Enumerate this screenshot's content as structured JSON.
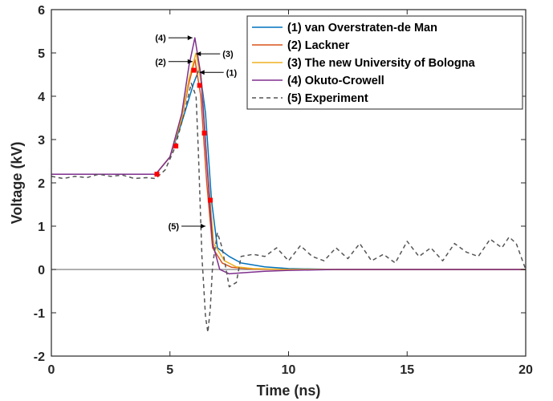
{
  "chart_data": {
    "type": "line",
    "title": "",
    "xlabel": "Time (ns)",
    "ylabel": "Voltage (kV)",
    "xlim": [
      0,
      20
    ],
    "ylim": [
      -2,
      6
    ],
    "xticks": [
      "0",
      "5",
      "10",
      "15",
      "20"
    ],
    "yticks": [
      "-2",
      "-1",
      "0",
      "1",
      "2",
      "3",
      "4",
      "5",
      "6"
    ],
    "grid": false,
    "legend_position": "top-right",
    "series": [
      {
        "name": "(1) van Overstraten-de Man",
        "color": "#0072BD",
        "style": "solid",
        "x": [
          0,
          4.4,
          5.0,
          5.5,
          6.0,
          6.25,
          6.5,
          6.75,
          7.0,
          7.5,
          8.0,
          9.0,
          10.0,
          12.0,
          20.0
        ],
        "y": [
          2.2,
          2.2,
          2.6,
          3.4,
          4.3,
          4.65,
          3.6,
          1.6,
          0.5,
          0.3,
          0.15,
          0.06,
          0.02,
          0.0,
          0.0
        ]
      },
      {
        "name": "(2) Lackner",
        "color": "#D95319",
        "style": "solid",
        "x": [
          0,
          4.4,
          5.0,
          5.5,
          5.8,
          6.05,
          6.3,
          6.55,
          6.8,
          7.2,
          7.6,
          8.5,
          10.0,
          20.0
        ],
        "y": [
          2.2,
          2.2,
          2.6,
          3.5,
          4.3,
          4.85,
          4.0,
          2.0,
          0.5,
          0.15,
          0.05,
          0.01,
          0.0,
          0.0
        ]
      },
      {
        "name": "(3) The new University of Bologna",
        "color": "#EDB120",
        "style": "solid",
        "x": [
          0,
          4.4,
          5.0,
          5.5,
          5.8,
          6.1,
          6.35,
          6.6,
          6.85,
          7.3,
          7.8,
          8.5,
          10.0,
          20.0
        ],
        "y": [
          2.2,
          2.2,
          2.6,
          3.5,
          4.4,
          5.0,
          4.2,
          2.2,
          0.6,
          0.2,
          0.06,
          0.02,
          0.0,
          0.0
        ]
      },
      {
        "name": "(4) Okuto-Crowell",
        "color": "#7E2F8E",
        "style": "solid",
        "x": [
          0,
          4.4,
          5.0,
          5.5,
          5.8,
          6.05,
          6.3,
          6.55,
          6.8,
          7.1,
          7.5,
          8.0,
          9.0,
          10.0,
          12.0,
          20.0
        ],
        "y": [
          2.2,
          2.2,
          2.6,
          3.6,
          4.7,
          5.35,
          4.5,
          2.5,
          0.6,
          0.0,
          -0.1,
          -0.08,
          -0.04,
          -0.02,
          0.0,
          0.0
        ]
      },
      {
        "name": "(5) Experiment",
        "color": "#555555",
        "style": "dashed",
        "x": [
          0,
          0.5,
          1.0,
          1.5,
          2.0,
          2.5,
          3.0,
          3.5,
          4.0,
          4.4,
          4.8,
          5.2,
          5.6,
          5.9,
          6.1,
          6.2,
          6.35,
          6.5,
          6.6,
          6.7,
          6.8,
          7.0,
          7.2,
          7.5,
          7.8,
          8.0,
          8.5,
          9.0,
          9.5,
          10.0,
          10.5,
          11.0,
          11.5,
          12.0,
          12.5,
          13.0,
          13.5,
          14.0,
          14.5,
          15.0,
          15.5,
          16.0,
          16.5,
          17.0,
          17.5,
          18.0,
          18.5,
          19.0,
          19.3,
          19.6,
          20.0
        ],
        "y": [
          2.15,
          2.1,
          2.15,
          2.12,
          2.2,
          2.15,
          2.18,
          2.1,
          2.12,
          2.1,
          2.3,
          2.8,
          3.6,
          4.3,
          4.0,
          2.7,
          0.3,
          -1.1,
          -1.45,
          -0.9,
          0.1,
          0.85,
          0.5,
          -0.4,
          -0.3,
          0.3,
          0.35,
          0.3,
          0.5,
          0.2,
          0.55,
          0.3,
          0.2,
          0.5,
          0.25,
          0.6,
          0.2,
          0.35,
          0.15,
          0.65,
          0.3,
          0.5,
          0.2,
          0.6,
          0.4,
          0.3,
          0.7,
          0.5,
          0.75,
          0.6,
          0.0
        ]
      }
    ],
    "markers": {
      "name": "",
      "color": "#FF0000",
      "shape": "square",
      "x": [
        4.45,
        5.25,
        6.0,
        6.25,
        6.45,
        6.7
      ],
      "y": [
        2.2,
        2.85,
        4.6,
        4.25,
        3.15,
        1.6
      ]
    },
    "annotations": [
      {
        "label": "(1)",
        "target_x": 6.25,
        "target_y": 4.55,
        "label_side": "right"
      },
      {
        "label": "(2)",
        "target_x": 5.95,
        "target_y": 4.8,
        "label_side": "left"
      },
      {
        "label": "(3)",
        "target_x": 6.1,
        "target_y": 4.98,
        "label_side": "right"
      },
      {
        "label": "(4)",
        "target_x": 5.95,
        "target_y": 5.35,
        "label_side": "left"
      },
      {
        "label": "(5)",
        "target_x": 6.5,
        "target_y": 1.0,
        "label_side": "left"
      }
    ],
    "zero_line": true
  }
}
